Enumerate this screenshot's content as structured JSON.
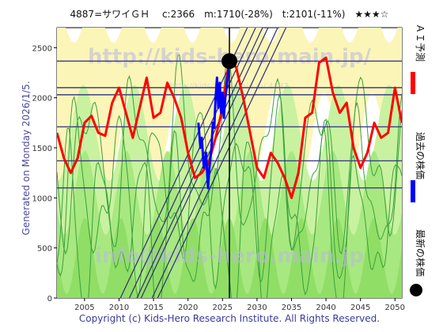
{
  "header": {
    "title": "4887=サワイＧＨ　 c:2366　m:1710(-28%)　t:2101(-11%)　★★★☆"
  },
  "generated_text": "Generated on Monday 2026/1/5.",
  "copyright": "Copyright (c) Kids-Hero Research Institute. All Rights Reserved.",
  "watermarks": {
    "main": "http://kids-hero.main.jp/",
    "bottom": "info@kids-hero.main.jp",
    "small": "http://kids-hero.main.jp/ 4887"
  },
  "legend": {
    "ai_label": "ＡＩ予測",
    "past_label": "過去の株価",
    "latest_label": "最新の株価",
    "ai_color": "#ff0000",
    "past_color": "#0000ff",
    "latest_color": "#000000"
  },
  "chart_data": {
    "type": "line",
    "xlim": [
      2001,
      2051
    ],
    "ylim": [
      0,
      2700
    ],
    "x_ticks": [
      2005,
      2010,
      2015,
      2020,
      2025,
      2030,
      2035,
      2040,
      2045,
      2050
    ],
    "y_ticks": [
      0,
      500,
      1000,
      1500,
      2000,
      2500
    ],
    "hlines": [
      2366,
      2101,
      2030,
      1710,
      1370,
      1100
    ],
    "vline_x": 2026,
    "latest_point": {
      "x": 2026,
      "y": 2366
    },
    "trend_lines": [
      [
        [
          2010.2,
          0
        ],
        [
          2028.6,
          2700
        ]
      ],
      [
        [
          2011.5,
          0
        ],
        [
          2029.8,
          2700
        ]
      ],
      [
        [
          2012.6,
          0
        ],
        [
          2030.8,
          2700
        ]
      ],
      [
        [
          2013.2,
          0
        ],
        [
          2031.6,
          2700
        ]
      ],
      [
        [
          2014.8,
          0
        ],
        [
          2033.0,
          2700
        ]
      ],
      [
        [
          2015.6,
          0
        ],
        [
          2034.2,
          2700
        ]
      ]
    ],
    "series": [
      {
        "name": "ＡＩ予測",
        "color": "#ff0000",
        "points": [
          [
            2001,
            1650
          ],
          [
            2002,
            1400
          ],
          [
            2003,
            1250
          ],
          [
            2004,
            1400
          ],
          [
            2005,
            1750
          ],
          [
            2006,
            1820
          ],
          [
            2007,
            1650
          ],
          [
            2008,
            1620
          ],
          [
            2009,
            1950
          ],
          [
            2010,
            2100
          ],
          [
            2011,
            1850
          ],
          [
            2012,
            1600
          ],
          [
            2013,
            1900
          ],
          [
            2014,
            2200
          ],
          [
            2015,
            1800
          ],
          [
            2016,
            1850
          ],
          [
            2017,
            2150
          ],
          [
            2018,
            2000
          ],
          [
            2019,
            1800
          ],
          [
            2020,
            1450
          ],
          [
            2021,
            1200
          ],
          [
            2022,
            1250
          ],
          [
            2023,
            1350
          ],
          [
            2024,
            1600
          ],
          [
            2025,
            1900
          ],
          [
            2026,
            2400
          ],
          [
            2027,
            2300
          ],
          [
            2028,
            2000
          ],
          [
            2029,
            1650
          ],
          [
            2030,
            1300
          ],
          [
            2031,
            1200
          ],
          [
            2032,
            1450
          ],
          [
            2033,
            1350
          ],
          [
            2034,
            1200
          ],
          [
            2035,
            1000
          ],
          [
            2036,
            1250
          ],
          [
            2037,
            1800
          ],
          [
            2038,
            1850
          ],
          [
            2039,
            2350
          ],
          [
            2040,
            2400
          ],
          [
            2041,
            2050
          ],
          [
            2042,
            1850
          ],
          [
            2043,
            1950
          ],
          [
            2044,
            1500
          ],
          [
            2045,
            1300
          ],
          [
            2046,
            1450
          ],
          [
            2047,
            1750
          ],
          [
            2048,
            1600
          ],
          [
            2049,
            1650
          ],
          [
            2050,
            2100
          ],
          [
            2051,
            1750
          ]
        ]
      },
      {
        "name": "過去の株価",
        "color": "#0000ff",
        "points": [
          [
            2021.5,
            1750
          ],
          [
            2021.8,
            1500
          ],
          [
            2022.0,
            1600
          ],
          [
            2022.3,
            1300
          ],
          [
            2022.6,
            1450
          ],
          [
            2022.9,
            1100
          ],
          [
            2023.1,
            1300
          ],
          [
            2023.4,
            1500
          ],
          [
            2023.6,
            1750
          ],
          [
            2023.8,
            1700
          ],
          [
            2024.0,
            2000
          ],
          [
            2024.2,
            2200
          ],
          [
            2024.4,
            1900
          ],
          [
            2024.6,
            2150
          ],
          [
            2024.8,
            1850
          ],
          [
            2025.0,
            2050
          ],
          [
            2025.2,
            1800
          ],
          [
            2025.4,
            2000
          ],
          [
            2025.6,
            2100
          ],
          [
            2025.8,
            2250
          ],
          [
            2026.0,
            2366
          ]
        ]
      }
    ]
  }
}
